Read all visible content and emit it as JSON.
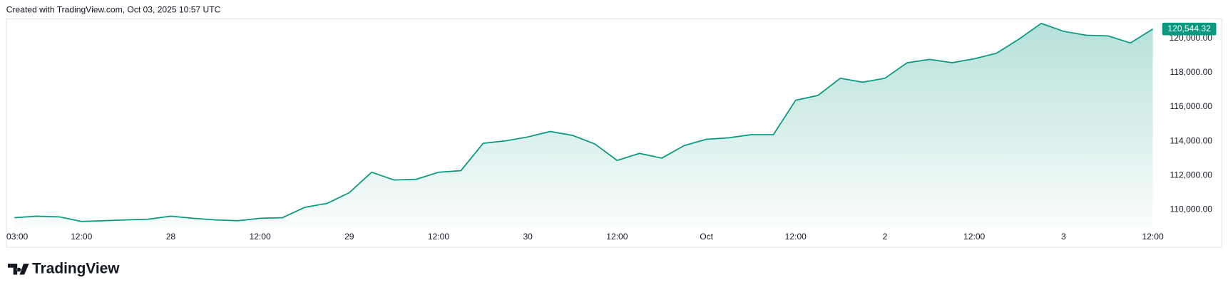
{
  "chart_data": {
    "type": "line",
    "title": "Created with TradingView.com, Oct 03, 2025 10:57 UTC",
    "footer": "TradingView",
    "color": "#089981",
    "categories": [
      "03:00",
      null,
      null,
      "12:00",
      null,
      null,
      null,
      "28",
      null,
      null,
      null,
      "12:00",
      null,
      null,
      null,
      "29",
      null,
      null,
      null,
      "12:00",
      null,
      null,
      null,
      "30",
      null,
      null,
      null,
      "12:00",
      null,
      null,
      null,
      "Oct",
      null,
      null,
      null,
      "12:00",
      null,
      null,
      null,
      "2",
      null,
      null,
      null,
      "12:00",
      null,
      null,
      null,
      "3",
      null,
      null,
      null,
      "12:00"
    ],
    "values": [
      109540,
      109630,
      109590,
      109320,
      109360,
      109410,
      109450,
      109630,
      109500,
      109410,
      109360,
      109500,
      109540,
      110140,
      110370,
      111000,
      112190,
      111740,
      111780,
      112190,
      112280,
      113880,
      114020,
      114250,
      114570,
      114340,
      113840,
      112880,
      113290,
      113010,
      113740,
      114110,
      114200,
      114380,
      114380,
      116390,
      116670,
      117670,
      117440,
      117670,
      118580,
      118770,
      118580,
      118810,
      119130,
      119950,
      120870,
      120410,
      120180,
      120140,
      119730,
      120544.32
    ],
    "value_labels": [
      null,
      null,
      null,
      null,
      null,
      null,
      null,
      null,
      null,
      null,
      null,
      null,
      null,
      null,
      null,
      null,
      null,
      null,
      null,
      null,
      null,
      null,
      null,
      null,
      null,
      null,
      null,
      null,
      null,
      null,
      null,
      null,
      null,
      null,
      null,
      null,
      null,
      null,
      null,
      null,
      null,
      null,
      null,
      null,
      null,
      null,
      null,
      null,
      null,
      null,
      null,
      "120,544.32"
    ],
    "ylim": [
      109000,
      121140
    ],
    "yticks": [
      {
        "value": 110000,
        "label": "110,000.00"
      },
      {
        "value": 112000,
        "label": "112,000.00"
      },
      {
        "value": 114000,
        "label": "114,000.00"
      },
      {
        "value": 116000,
        "label": "116,000.00"
      },
      {
        "value": 118000,
        "label": "118,000.00"
      },
      {
        "value": 120000,
        "label": "120,000.00"
      }
    ],
    "grid": false
  }
}
